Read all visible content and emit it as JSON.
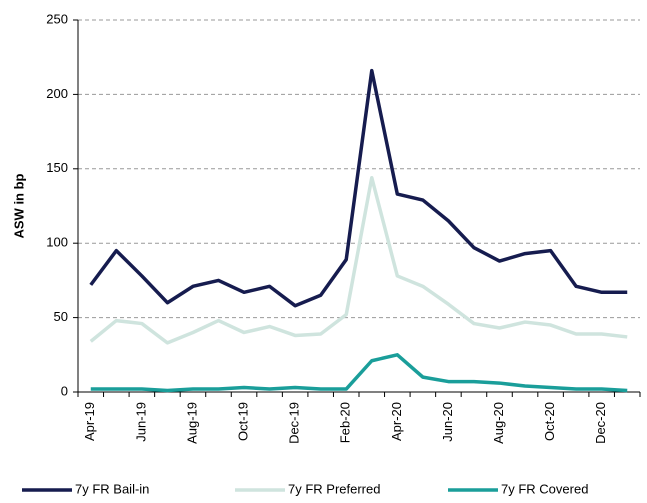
{
  "chart_data": {
    "type": "line",
    "y_label": "ASW in bp",
    "categories": [
      "Apr-19",
      null,
      "Jun-19",
      null,
      "Aug-19",
      null,
      "Oct-19",
      null,
      "Dec-19",
      null,
      "Feb-20",
      null,
      "Apr-20",
      null,
      "Jun-20",
      null,
      "Aug-20",
      null,
      "Oct-20",
      null,
      "Dec-20",
      null
    ],
    "series": [
      {
        "name": "7y FR Bail-in",
        "color": "#161c4f",
        "values": [
          72,
          95,
          78,
          60,
          71,
          75,
          67,
          71,
          58,
          65,
          89,
          216,
          133,
          129,
          115,
          97,
          88,
          93,
          95,
          71,
          67,
          67
        ]
      },
      {
        "name": "7y FR Preferred",
        "color": "#cfe4de",
        "values": [
          34,
          48,
          46,
          33,
          40,
          48,
          40,
          44,
          38,
          39,
          52,
          144,
          78,
          71,
          59,
          46,
          43,
          47,
          45,
          39,
          39,
          37
        ]
      },
      {
        "name": "7y FR Covered",
        "color": "#1a9e9a",
        "values": [
          2,
          2,
          2,
          1,
          2,
          2,
          3,
          2,
          3,
          2,
          2,
          21,
          25,
          10,
          7,
          7,
          6,
          4,
          3,
          2,
          2,
          1
        ]
      }
    ],
    "ylim": [
      0,
      250
    ],
    "yticks": [
      0,
      50,
      100,
      150,
      200,
      250
    ],
    "grid": true,
    "legend": "bottom"
  }
}
